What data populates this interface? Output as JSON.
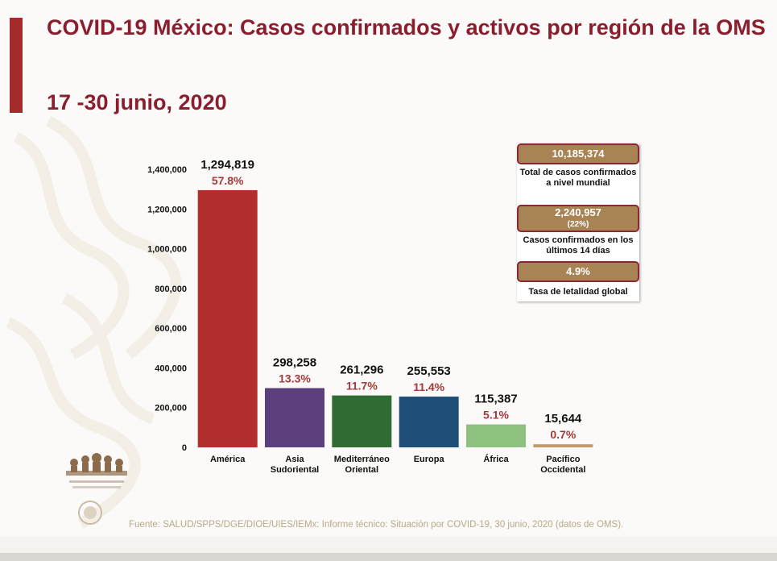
{
  "header": {
    "title": "COVID-19 México: Casos confirmados y activos por región de la OMS",
    "subtitle": "17 -30 junio, 2020"
  },
  "colors": {
    "accent": "#a52a2a",
    "title_text": "#8b1e2e",
    "stat_box_fill": "#a88455",
    "stat_box_border": "#8b2838",
    "percent_text": "#a33a3a"
  },
  "chart_data": {
    "type": "bar",
    "categories": [
      "América",
      "Asia\nSudoriental",
      "Mediterráneo\nOriental",
      "Europa",
      "África",
      "Pacífico\nOccidental"
    ],
    "values": [
      1294819,
      298258,
      261296,
      255553,
      115387,
      15644
    ],
    "value_labels": [
      "1,294,819",
      "298,258",
      "261,296",
      "255,553",
      "115,387",
      "15,644"
    ],
    "percent_labels": [
      "57.8%",
      "13.3%",
      "11.7%",
      "11.4%",
      "5.1%",
      "0.7%"
    ],
    "bar_colors": [
      "#b22d2d",
      "#5b3f7d",
      "#2f6b33",
      "#1f4e78",
      "#8fc17e",
      "#c49a66"
    ],
    "ylim": [
      0,
      1400000
    ],
    "yticks": [
      0,
      200000,
      400000,
      600000,
      800000,
      1000000,
      1200000,
      1400000
    ],
    "ytick_labels": [
      "0",
      "200,000",
      "400,000",
      "600,000",
      "800,000",
      "1,000,000",
      "1,200,000",
      "1,400,000"
    ],
    "grid": false,
    "title": "",
    "xlabel": "",
    "ylabel": ""
  },
  "stats": {
    "total": {
      "value": "10,185,374",
      "caption": "Total de casos confirmados a nivel mundial"
    },
    "last14": {
      "value": "2,240,957",
      "sub": "(22%)",
      "caption": "Casos confirmados en los últimos 14 días"
    },
    "lethality": {
      "value": "4.9%",
      "caption": "Tasa de letalidad global"
    }
  },
  "footer": {
    "source": "Fuente: SALUD/SPPS/DGE/DIOE/UIES/IEMx: Informe técnico: Situación por COVID-19, 30 junio, 2020 (datos de OMS)."
  }
}
